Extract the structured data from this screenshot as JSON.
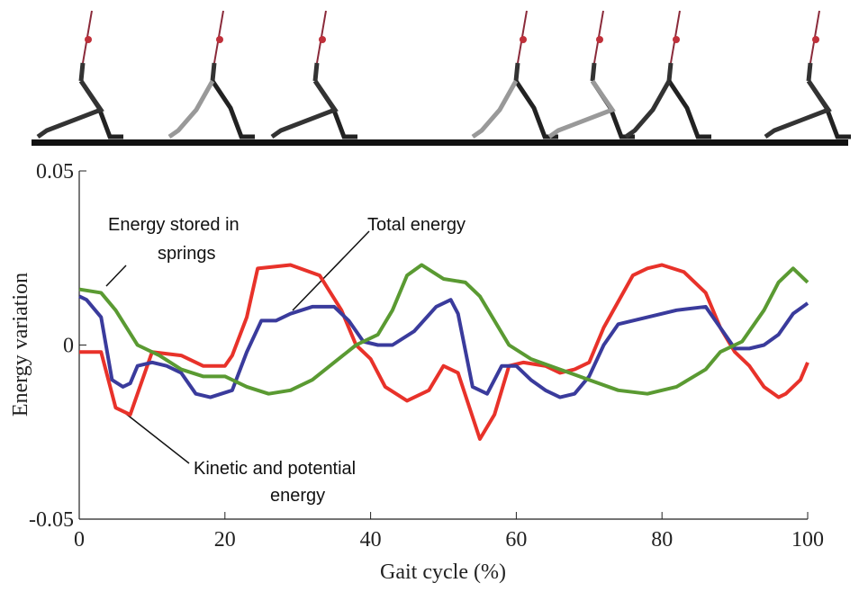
{
  "chart_data": {
    "type": "line",
    "xlabel": "Gait cycle (%)",
    "ylabel": "Energy variation",
    "xlim": [
      0,
      100
    ],
    "xticks": [
      0,
      20,
      40,
      60,
      80,
      100
    ],
    "ylim": [
      -0.05,
      0.05
    ],
    "yticks": [
      -0.05,
      0,
      0.05
    ],
    "series": [
      {
        "color": "#e8322a",
        "x": [
          0,
          3,
          5,
          7,
          10,
          14,
          17,
          20,
          21,
          23,
          24.5,
          29,
          33,
          36,
          38,
          40,
          42,
          45,
          48,
          50,
          52,
          55,
          57,
          59,
          61,
          64,
          66,
          68,
          70,
          72,
          76,
          78,
          80,
          83,
          86,
          88,
          90,
          92,
          94,
          96,
          97,
          99,
          100
        ],
        "values": [
          -0.002,
          -0.002,
          -0.018,
          -0.02,
          -0.002,
          -0.003,
          -0.006,
          -0.006,
          -0.003,
          0.008,
          0.022,
          0.023,
          0.02,
          0.01,
          0,
          -0.004,
          -0.012,
          -0.016,
          -0.013,
          -0.006,
          -0.008,
          -0.027,
          -0.02,
          -0.006,
          -0.005,
          -0.006,
          -0.008,
          -0.007,
          -0.005,
          0.005,
          0.02,
          0.022,
          0.023,
          0.021,
          0.015,
          0.005,
          -0.002,
          -0.006,
          -0.012,
          -0.015,
          -0.014,
          -0.01,
          -0.005
        ]
      },
      {
        "color": "#3a3b9c",
        "x": [
          0,
          1,
          3,
          4.5,
          6,
          7,
          8,
          10,
          12,
          14,
          16,
          18,
          21,
          23,
          25,
          27,
          29,
          32,
          35,
          37,
          39,
          41,
          43,
          46,
          49,
          51,
          52,
          54,
          56,
          58,
          60,
          62,
          64,
          66,
          68,
          70,
          72,
          74,
          78,
          82,
          86,
          88,
          90,
          92,
          94,
          96,
          98,
          100
        ],
        "values": [
          0.014,
          0.013,
          0.008,
          -0.01,
          -0.012,
          -0.011,
          -0.006,
          -0.005,
          -0.006,
          -0.008,
          -0.014,
          -0.015,
          -0.013,
          -0.002,
          0.007,
          0.007,
          0.009,
          0.011,
          0.011,
          0.007,
          0.001,
          0,
          0,
          0.004,
          0.011,
          0.013,
          0.009,
          -0.012,
          -0.014,
          -0.006,
          -0.006,
          -0.01,
          -0.013,
          -0.015,
          -0.014,
          -0.009,
          0,
          0.006,
          0.008,
          0.01,
          0.011,
          0.005,
          -0.001,
          -0.001,
          0,
          0.003,
          0.009,
          0.012
        ]
      },
      {
        "color": "#5a9a32",
        "x": [
          0,
          3,
          5,
          8,
          11,
          14,
          17,
          20,
          23,
          26,
          29,
          32,
          35,
          38,
          41,
          43,
          45,
          47,
          50,
          53,
          55,
          57,
          59,
          62,
          66,
          70,
          74,
          78,
          82,
          86,
          88,
          91,
          94,
          96,
          98,
          100
        ],
        "values": [
          0.016,
          0.015,
          0.01,
          0,
          -0.003,
          -0.007,
          -0.009,
          -0.009,
          -0.012,
          -0.014,
          -0.013,
          -0.01,
          -0.005,
          0,
          0.003,
          0.01,
          0.02,
          0.023,
          0.019,
          0.018,
          0.014,
          0.007,
          0,
          -0.004,
          -0.007,
          -0.01,
          -0.013,
          -0.014,
          -0.012,
          -0.007,
          -0.002,
          0.001,
          0.01,
          0.018,
          0.022,
          0.018
        ]
      }
    ],
    "annotations": [
      {
        "lines": [
          "Energy stored in",
          "springs"
        ]
      },
      {
        "lines": [
          "Total energy"
        ]
      },
      {
        "lines": [
          "Kinetic and potential",
          "energy"
        ]
      }
    ]
  }
}
